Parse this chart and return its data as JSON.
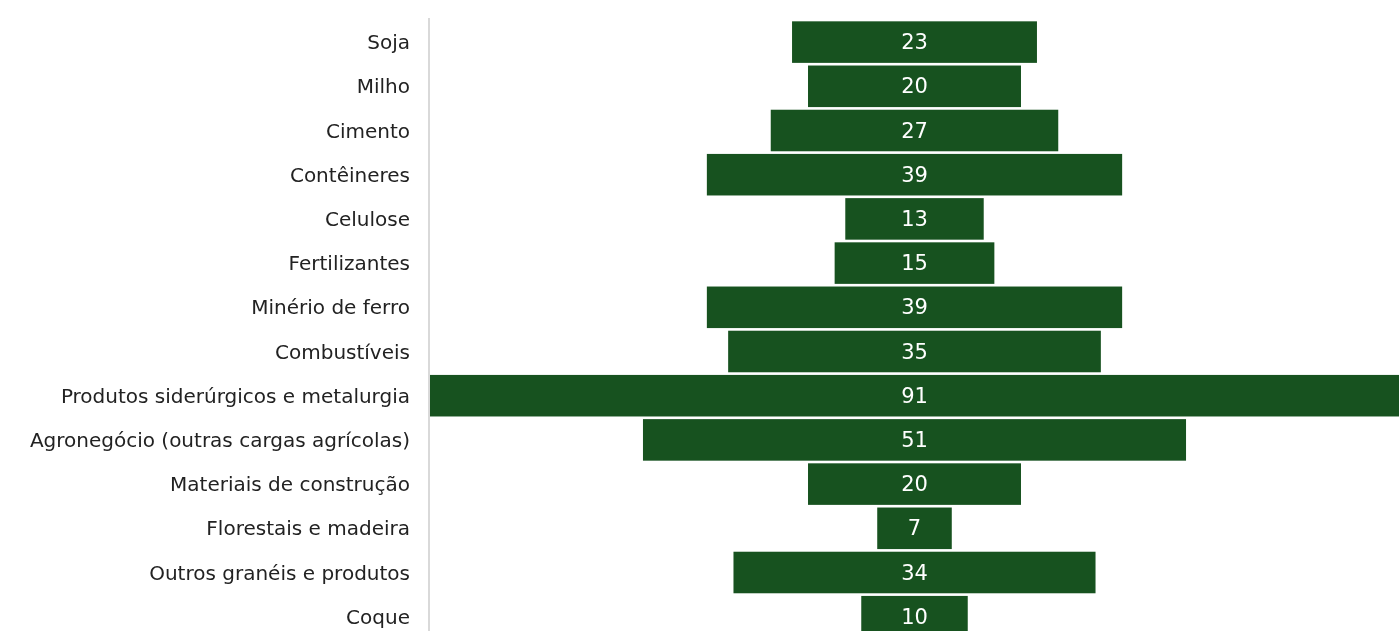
{
  "chart_data": {
    "type": "other",
    "data_labels": true,
    "color": "#17521f",
    "categories": [
      "Soja",
      "Milho",
      "Cimento",
      "Contêineres",
      "Celulose",
      "Fertilizantes",
      "Minério de ferro",
      "Combustíveis",
      "Produtos siderúrgicos e metalurgia",
      "Agronegócio (outras cargas agrícolas)",
      "Materiais de construção",
      "Florestais e madeira",
      "Outros granéis e produtos",
      "Coque"
    ],
    "values": [
      23,
      20,
      27,
      39,
      13,
      15,
      39,
      35,
      91,
      51,
      20,
      7,
      34,
      10
    ]
  }
}
